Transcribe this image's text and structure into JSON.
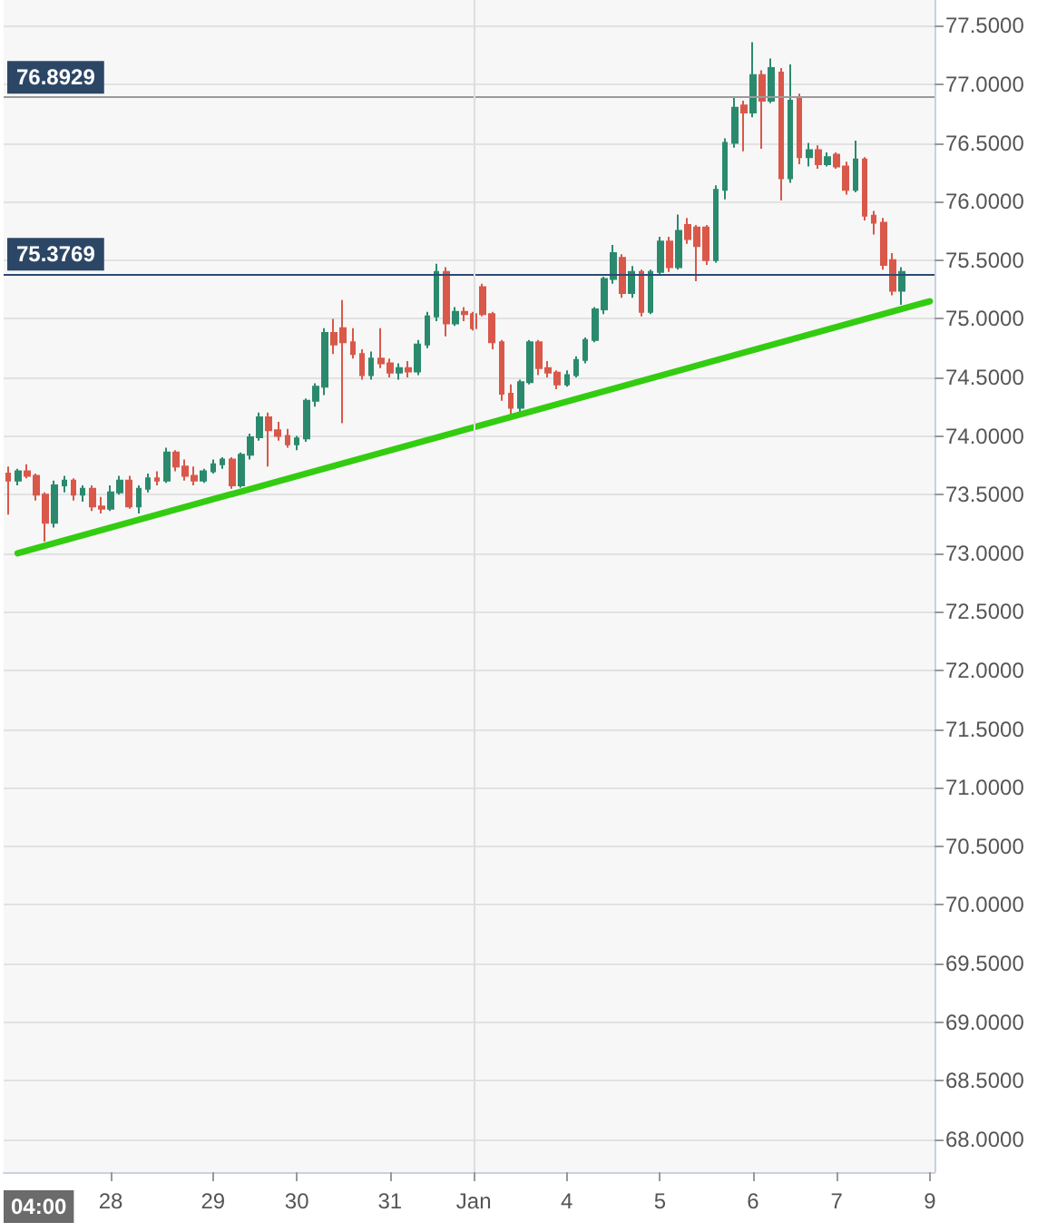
{
  "chart_data": {
    "type": "candlestick",
    "categories": [
      null,
      null,
      null,
      null,
      null,
      null,
      null,
      null,
      null,
      null,
      null,
      "28",
      null,
      null,
      null,
      null,
      null,
      null,
      null,
      null,
      null,
      null,
      "29",
      null,
      null,
      null,
      null,
      null,
      null,
      null,
      null,
      "30",
      null,
      null,
      null,
      null,
      null,
      null,
      null,
      null,
      null,
      "31",
      null,
      null,
      null,
      null,
      null,
      null,
      null,
      null,
      "Jan",
      null,
      null,
      null,
      null,
      null,
      null,
      null,
      null,
      null,
      "4",
      null,
      null,
      null,
      null,
      null,
      null,
      null,
      null,
      null,
      "5",
      null,
      null,
      null,
      null,
      null,
      null,
      null,
      null,
      null,
      "6",
      null,
      null,
      null,
      null,
      null,
      null,
      null,
      null,
      "7",
      null,
      null,
      null,
      null,
      null,
      null,
      null,
      null,
      null,
      "9"
    ],
    "series": [
      {
        "ohlc": [
          [
            73.68,
            73.74,
            73.33,
            73.62
          ],
          [
            73.62,
            73.72,
            73.58,
            73.7
          ],
          [
            73.7,
            73.76,
            73.64,
            73.66
          ],
          [
            73.66,
            73.68,
            73.45,
            73.5
          ],
          [
            73.5,
            73.52,
            73.1,
            73.26
          ],
          [
            73.26,
            73.62,
            73.22,
            73.58
          ],
          [
            73.58,
            73.66,
            73.52,
            73.62
          ],
          [
            73.62,
            73.64,
            73.45,
            73.5
          ],
          [
            73.5,
            73.58,
            73.44,
            73.55
          ],
          [
            73.55,
            73.58,
            73.36,
            73.4
          ],
          [
            73.4,
            73.48,
            73.34,
            73.38
          ],
          [
            73.38,
            73.58,
            73.36,
            73.52
          ],
          [
            73.52,
            73.66,
            73.5,
            73.62
          ],
          [
            73.62,
            73.66,
            73.38,
            73.4
          ],
          [
            73.4,
            73.58,
            73.34,
            73.55
          ],
          [
            73.55,
            73.68,
            73.52,
            73.64
          ],
          [
            73.64,
            73.7,
            73.58,
            73.62
          ],
          [
            73.62,
            73.9,
            73.6,
            73.86
          ],
          [
            73.86,
            73.88,
            73.7,
            73.74
          ],
          [
            73.74,
            73.8,
            73.62,
            73.66
          ],
          [
            73.66,
            73.74,
            73.58,
            73.62
          ],
          [
            73.62,
            73.72,
            73.6,
            73.7
          ],
          [
            73.7,
            73.8,
            73.68,
            73.76
          ],
          [
            73.76,
            73.82,
            73.72,
            73.8
          ],
          [
            73.8,
            73.82,
            73.55,
            73.58
          ],
          [
            73.58,
            73.86,
            73.56,
            73.84
          ],
          [
            73.84,
            74.02,
            73.8,
            73.99
          ],
          [
            73.99,
            74.2,
            73.96,
            74.16
          ],
          [
            74.16,
            74.2,
            73.74,
            74.05
          ],
          [
            74.05,
            74.12,
            73.96,
            74.0
          ],
          [
            74.0,
            74.06,
            73.9,
            73.93
          ],
          [
            73.93,
            74.0,
            73.88,
            73.98
          ],
          [
            73.98,
            74.32,
            73.95,
            74.3
          ],
          [
            74.3,
            74.45,
            74.25,
            74.42
          ],
          [
            74.42,
            74.92,
            74.35,
            74.88
          ],
          [
            74.88,
            75.0,
            74.7,
            74.78
          ],
          [
            74.92,
            75.16,
            74.11,
            74.8
          ],
          [
            74.8,
            74.92,
            74.66,
            74.7
          ],
          [
            74.7,
            74.74,
            74.48,
            74.52
          ],
          [
            74.52,
            74.72,
            74.48,
            74.66
          ],
          [
            74.66,
            74.92,
            74.58,
            74.62
          ],
          [
            74.62,
            74.66,
            74.5,
            74.54
          ],
          [
            74.54,
            74.62,
            74.48,
            74.58
          ],
          [
            74.58,
            74.64,
            74.5,
            74.55
          ],
          [
            74.55,
            74.82,
            74.52,
            74.78
          ],
          [
            74.78,
            75.06,
            74.75,
            75.02
          ],
          [
            75.02,
            75.47,
            74.98,
            75.4
          ],
          [
            75.4,
            75.44,
            74.85,
            74.96
          ],
          [
            74.96,
            75.1,
            74.94,
            75.06
          ],
          [
            75.06,
            75.1,
            74.98,
            75.04
          ],
          [
            75.04,
            75.06,
            74.9,
            74.92
          ],
          [
            75.27,
            75.3,
            75.02,
            75.04
          ],
          [
            75.04,
            75.06,
            74.74,
            74.8
          ],
          [
            74.8,
            74.82,
            74.3,
            74.36
          ],
          [
            74.36,
            74.44,
            74.17,
            74.24
          ],
          [
            74.24,
            74.48,
            74.2,
            74.46
          ],
          [
            74.46,
            74.82,
            74.44,
            74.8
          ],
          [
            74.8,
            74.82,
            74.52,
            74.58
          ],
          [
            74.58,
            74.64,
            74.5,
            74.54
          ],
          [
            74.54,
            74.56,
            74.4,
            74.44
          ],
          [
            74.44,
            74.56,
            74.42,
            74.52
          ],
          [
            74.52,
            74.68,
            74.5,
            74.65
          ],
          [
            74.65,
            74.84,
            74.62,
            74.82
          ],
          [
            74.82,
            75.1,
            74.8,
            75.08
          ],
          [
            75.08,
            75.36,
            75.04,
            75.34
          ],
          [
            75.34,
            75.63,
            75.3,
            75.56
          ],
          [
            75.52,
            75.55,
            75.18,
            75.22
          ],
          [
            75.22,
            75.45,
            75.18,
            75.4
          ],
          [
            75.4,
            75.42,
            75.02,
            75.06
          ],
          [
            75.06,
            75.42,
            75.04,
            75.4
          ],
          [
            75.4,
            75.7,
            75.38,
            75.66
          ],
          [
            75.66,
            75.7,
            75.4,
            75.44
          ],
          [
            75.44,
            75.89,
            75.42,
            75.75
          ],
          [
            75.8,
            75.86,
            75.64,
            75.68
          ],
          [
            75.78,
            75.8,
            75.32,
            75.62
          ],
          [
            75.78,
            75.8,
            75.46,
            75.5
          ],
          [
            75.5,
            76.14,
            75.48,
            76.1
          ],
          [
            76.1,
            76.54,
            76.02,
            76.5
          ],
          [
            76.5,
            76.9,
            76.46,
            76.8
          ],
          [
            76.82,
            76.86,
            76.43,
            76.76
          ],
          [
            76.76,
            77.36,
            76.72,
            77.08
          ],
          [
            77.08,
            77.12,
            76.45,
            76.86
          ],
          [
            76.86,
            77.22,
            76.84,
            77.14
          ],
          [
            77.1,
            77.14,
            76.01,
            76.2
          ],
          [
            76.2,
            77.17,
            76.16,
            76.86
          ],
          [
            76.88,
            76.92,
            76.32,
            76.38
          ],
          [
            76.38,
            76.5,
            76.3,
            76.44
          ],
          [
            76.44,
            76.48,
            76.28,
            76.32
          ],
          [
            76.32,
            76.42,
            76.3,
            76.38
          ],
          [
            76.4,
            76.42,
            76.28,
            76.3
          ],
          [
            76.3,
            76.34,
            76.06,
            76.1
          ],
          [
            76.1,
            76.52,
            76.08,
            76.36
          ],
          [
            76.36,
            76.38,
            75.84,
            75.88
          ],
          [
            75.88,
            75.92,
            75.72,
            75.82
          ],
          [
            75.82,
            75.86,
            75.42,
            75.46
          ],
          [
            75.5,
            75.56,
            75.2,
            75.24
          ],
          [
            75.24,
            75.44,
            75.12,
            75.4
          ],
          null,
          null,
          null
        ],
        "colors": [
          "#d9584a",
          "#2b8a6e",
          "#d9584a",
          "#d9584a",
          "#d9584a",
          "#2b8a6e",
          "#2b8a6e",
          "#d9584a",
          "#2b8a6e",
          "#d9584a",
          "#d9584a",
          "#2b8a6e",
          "#2b8a6e",
          "#d9584a",
          "#2b8a6e",
          "#2b8a6e",
          "#d9584a",
          "#2b8a6e",
          "#d9584a",
          "#d9584a",
          "#d9584a",
          "#2b8a6e",
          "#2b8a6e",
          "#2b8a6e",
          "#d9584a",
          "#2b8a6e",
          "#2b8a6e",
          "#2b8a6e",
          "#d9584a",
          "#d9584a",
          "#d9584a",
          "#2b8a6e",
          "#2b8a6e",
          "#2b8a6e",
          "#2b8a6e",
          "#d9584a",
          "#d9584a",
          "#d9584a",
          "#d9584a",
          "#2b8a6e",
          "#d9584a",
          "#d9584a",
          "#2b8a6e",
          "#d9584a",
          "#2b8a6e",
          "#2b8a6e",
          "#2b8a6e",
          "#d9584a",
          "#2b8a6e",
          "#d9584a",
          "#d9584a",
          "#d9584a",
          "#d9584a",
          "#d9584a",
          "#d9584a",
          "#2b8a6e",
          "#2b8a6e",
          "#d9584a",
          "#d9584a",
          "#d9584a",
          "#2b8a6e",
          "#2b8a6e",
          "#2b8a6e",
          "#2b8a6e",
          "#2b8a6e",
          "#2b8a6e",
          "#d9584a",
          "#2b8a6e",
          "#d9584a",
          "#2b8a6e",
          "#2b8a6e",
          "#d9584a",
          "#2b8a6e",
          "#d9584a",
          "#d9584a",
          "#d9584a",
          "#2b8a6e",
          "#2b8a6e",
          "#2b8a6e",
          "#d9584a",
          "#2b8a6e",
          "#d9584a",
          "#2b8a6e",
          "#d9584a",
          "#2b8a6e",
          "#d9584a",
          "#2b8a6e",
          "#d9584a",
          "#2b8a6e",
          "#d9584a",
          "#d9584a",
          "#2b8a6e",
          "#d9584a",
          "#d9584a",
          "#d9584a",
          "#d9584a",
          "#2b8a6e",
          null,
          null,
          null
        ]
      },
      {
        "type": "line",
        "color": "#33cc11",
        "values": [
          null,
          73.0,
          null,
          null,
          null,
          null,
          null,
          null,
          null,
          null,
          null,
          null,
          null,
          null,
          null,
          null,
          null,
          null,
          null,
          null,
          null,
          null,
          null,
          null,
          null,
          null,
          null,
          null,
          null,
          null,
          null,
          null,
          null,
          null,
          null,
          null,
          null,
          null,
          null,
          null,
          null,
          null,
          null,
          null,
          null,
          null,
          null,
          null,
          null,
          null,
          null,
          null,
          null,
          null,
          null,
          null,
          null,
          null,
          null,
          null,
          null,
          null,
          null,
          null,
          null,
          null,
          null,
          null,
          null,
          null,
          null,
          null,
          null,
          null,
          null,
          null,
          null,
          null,
          null,
          null,
          null,
          null,
          null,
          null,
          null,
          null,
          null,
          null,
          null,
          null,
          null,
          null,
          null,
          null,
          null,
          null,
          null,
          null,
          null,
          75.15
        ]
      }
    ],
    "ylim": [
      67.72,
      77.72
    ],
    "yticks": [
      {
        "value": 68,
        "label": "68.0000"
      },
      {
        "value": 68.5,
        "label": "68.5000"
      },
      {
        "value": 69,
        "label": "69.0000"
      },
      {
        "value": 69.5,
        "label": "69.5000"
      },
      {
        "value": 70,
        "label": "70.0000"
      },
      {
        "value": 70.5,
        "label": "70.5000"
      },
      {
        "value": 71,
        "label": "71.0000"
      },
      {
        "value": 71.5,
        "label": "71.5000"
      },
      {
        "value": 72,
        "label": "72.0000"
      },
      {
        "value": 72.5,
        "label": "72.5000"
      },
      {
        "value": 73,
        "label": "73.0000"
      },
      {
        "value": 73.5,
        "label": "73.5000"
      },
      {
        "value": 74,
        "label": "74.0000"
      },
      {
        "value": 74.5,
        "label": "74.5000"
      },
      {
        "value": 75,
        "label": "75.0000"
      },
      {
        "value": 75.5,
        "label": "75.5000"
      },
      {
        "value": 76,
        "label": "76.0000"
      },
      {
        "value": 76.5,
        "label": "76.5000"
      },
      {
        "value": 77,
        "label": "77.0000"
      },
      {
        "value": 77.5,
        "label": "77.5000"
      }
    ],
    "grid": "y",
    "ref_lines": [
      {
        "axis": "y",
        "value": 76.8929,
        "label": "76.8929",
        "color": "#9a9a9a"
      },
      {
        "axis": "y",
        "value": 75.3769,
        "label": "75.3769",
        "color": "#2b4a74"
      },
      {
        "axis": "x",
        "value": "Jan",
        "color": "#dedede"
      }
    ],
    "annotations": [
      "04:00"
    ]
  }
}
